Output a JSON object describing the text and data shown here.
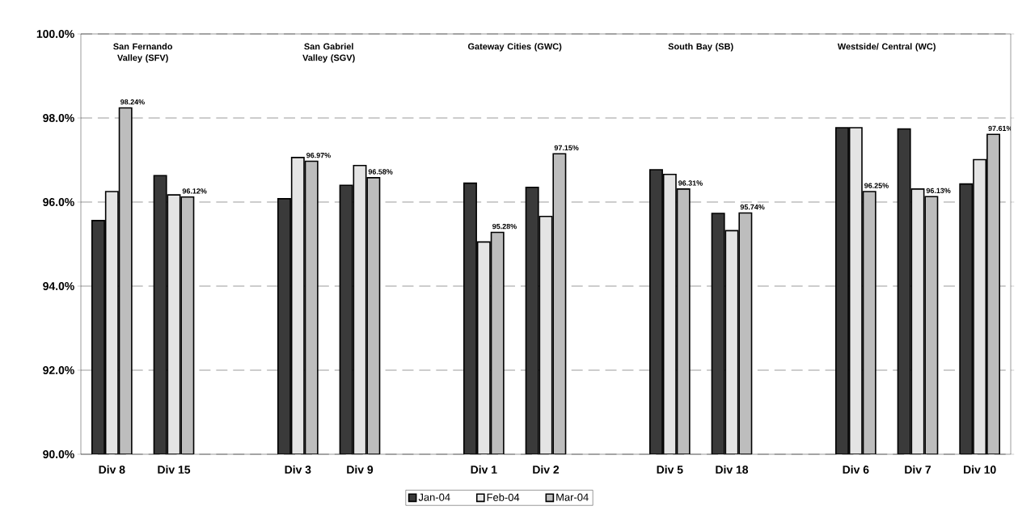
{
  "chart_data": {
    "type": "bar",
    "categories": [
      "Div 8",
      "Div 15",
      null,
      "Div 3",
      "Div 9",
      null,
      "Div 1",
      "Div 2",
      null,
      "Div 5",
      "Div 18",
      null,
      "Div 6",
      "Div 7",
      "Div 10"
    ],
    "series": [
      {
        "name": "Jan-04",
        "color": "#3a3a3a",
        "values": [
          95.56,
          96.63,
          null,
          96.08,
          96.4,
          null,
          96.45,
          96.35,
          null,
          96.77,
          95.73,
          null,
          97.77,
          97.74,
          96.43
        ]
      },
      {
        "name": "Feb-04",
        "color": "#e4e4e4",
        "values": [
          96.25,
          96.17,
          null,
          97.06,
          96.87,
          null,
          95.05,
          95.66,
          null,
          96.66,
          95.32,
          null,
          97.77,
          96.31,
          97.01
        ]
      },
      {
        "name": "Mar-04",
        "color": "#bdbdbd",
        "values": [
          98.24,
          96.12,
          null,
          96.97,
          96.58,
          null,
          95.28,
          97.15,
          null,
          96.31,
          95.74,
          null,
          96.25,
          96.13,
          97.61
        ],
        "value_labels": [
          "98.24%",
          "96.12%",
          null,
          "96.97%",
          "96.58%",
          null,
          "95.28%",
          "97.15%",
          null,
          "96.31%",
          "95.74%",
          null,
          "96.25%",
          "96.13%",
          "97.61%"
        ]
      }
    ],
    "ylim": [
      90,
      100
    ],
    "yticks": [
      {
        "value": 90,
        "label": "90.0%"
      },
      {
        "value": 92,
        "label": "92.0%"
      },
      {
        "value": 94,
        "label": "94.0%"
      },
      {
        "value": 96,
        "label": "96.0%"
      },
      {
        "value": 98,
        "label": "98.0%"
      },
      {
        "value": 100,
        "label": "100.0%"
      }
    ],
    "grid": "y",
    "legend": "bottom",
    "annotations": [
      "San Fernando Valley (SFV)",
      "San Gabriel Valley (SGV)",
      "Gateway Cities (GWC)",
      "South Bay (SB)",
      "Westside/ Central (WC)"
    ]
  }
}
